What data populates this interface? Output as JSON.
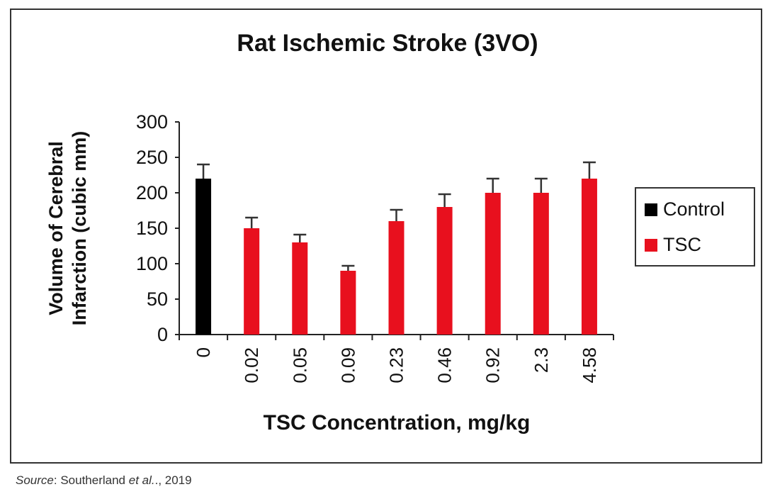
{
  "chart_data": {
    "type": "bar",
    "title": "Rat Ischemic Stroke (3VO)",
    "xlabel": "TSC Concentration, mg/kg",
    "ylabel": "Volume of Cerebral Infarction (cubic mm)",
    "ylabel_lines": [
      "Volume of Cerebral",
      "Infarction (cubic mm)"
    ],
    "ylim": [
      0,
      300
    ],
    "yticks": [
      0,
      50,
      100,
      150,
      200,
      250,
      300
    ],
    "categories": [
      "0",
      "0.02",
      "0.05",
      "0.09",
      "0.23",
      "0.46",
      "0.92",
      "2.3",
      "4.58"
    ],
    "series": [
      {
        "name": "Control",
        "color": "#000000",
        "values": [
          220,
          null,
          null,
          null,
          null,
          null,
          null,
          null,
          null
        ],
        "error": [
          20,
          null,
          null,
          null,
          null,
          null,
          null,
          null,
          null
        ]
      },
      {
        "name": "TSC",
        "color": "#e8101e",
        "values": [
          null,
          150,
          130,
          90,
          160,
          180,
          200,
          200,
          220
        ],
        "error": [
          null,
          15,
          11,
          7,
          16,
          18,
          20,
          20,
          23
        ]
      }
    ],
    "legend": {
      "position": "right",
      "entries": [
        "Control",
        "TSC"
      ]
    },
    "grid": false
  },
  "source": {
    "label": "Source",
    "text": ": Southerland ",
    "etal": "et al.",
    "year": "., 2019"
  }
}
